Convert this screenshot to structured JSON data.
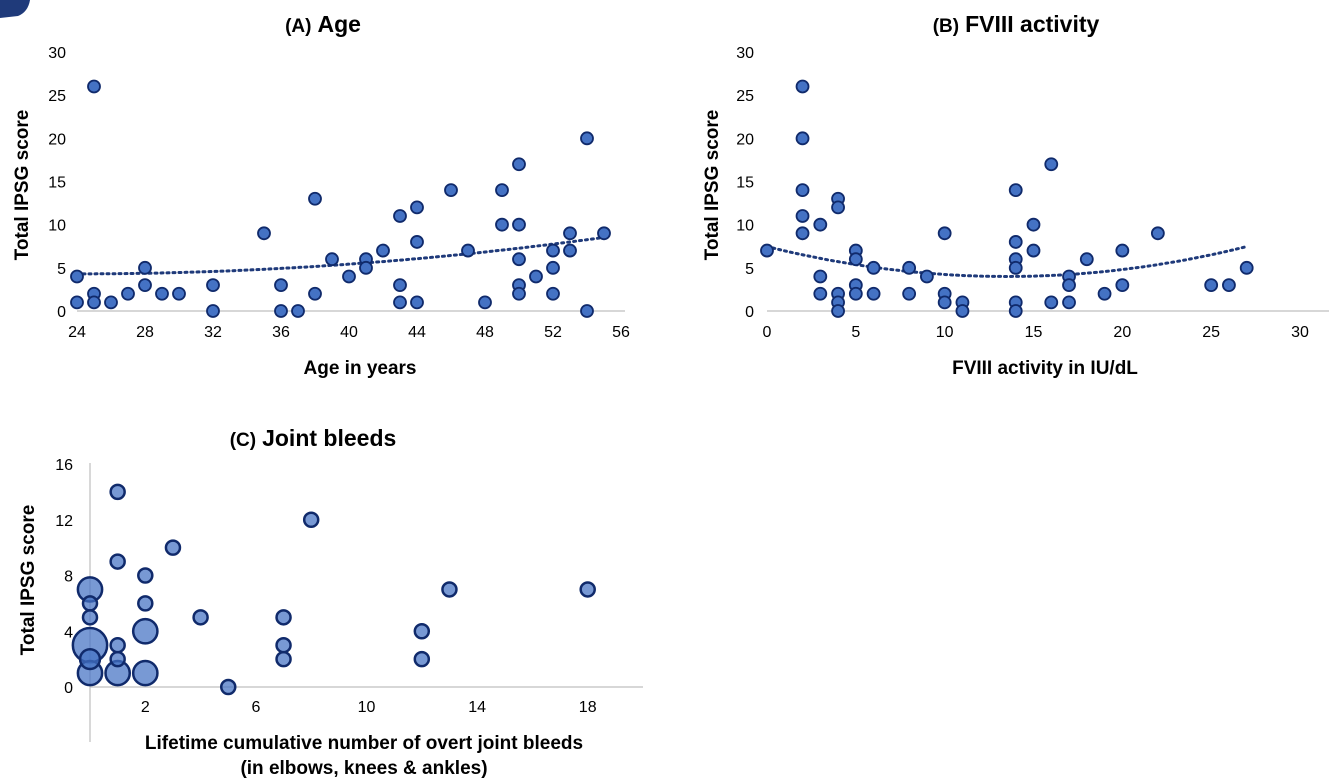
{
  "chart_data": [
    {
      "type": "scatter",
      "title_prefix": "(A)",
      "title": "Age",
      "xlabel": "Age in years",
      "ylabel": "Total IPSG score",
      "xlim": [
        24,
        56
      ],
      "ylim": [
        0,
        30
      ],
      "xticks": [
        24,
        28,
        32,
        36,
        40,
        44,
        48,
        52,
        56
      ],
      "yticks": [
        0,
        5,
        10,
        15,
        20,
        25,
        30
      ],
      "trendline": "polynomial",
      "trend_coeffs": [
        4.3,
        0,
        0.0044
      ],
      "trend_center": 24,
      "trend_range": [
        24,
        55
      ],
      "grid": false,
      "points": [
        {
          "x": 24,
          "y": 4
        },
        {
          "x": 24,
          "y": 1
        },
        {
          "x": 25,
          "y": 26
        },
        {
          "x": 25,
          "y": 2
        },
        {
          "x": 25,
          "y": 1
        },
        {
          "x": 26,
          "y": 1
        },
        {
          "x": 27,
          "y": 2
        },
        {
          "x": 28,
          "y": 5
        },
        {
          "x": 28,
          "y": 3
        },
        {
          "x": 29,
          "y": 2
        },
        {
          "x": 30,
          "y": 2
        },
        {
          "x": 32,
          "y": 3
        },
        {
          "x": 32,
          "y": 0
        },
        {
          "x": 35,
          "y": 9
        },
        {
          "x": 36,
          "y": 3
        },
        {
          "x": 36,
          "y": 0
        },
        {
          "x": 37,
          "y": 0
        },
        {
          "x": 38,
          "y": 13
        },
        {
          "x": 38,
          "y": 2
        },
        {
          "x": 39,
          "y": 6
        },
        {
          "x": 40,
          "y": 4
        },
        {
          "x": 41,
          "y": 6
        },
        {
          "x": 41,
          "y": 5
        },
        {
          "x": 42,
          "y": 7
        },
        {
          "x": 43,
          "y": 11
        },
        {
          "x": 43,
          "y": 3
        },
        {
          "x": 43,
          "y": 1
        },
        {
          "x": 44,
          "y": 12
        },
        {
          "x": 44,
          "y": 8
        },
        {
          "x": 44,
          "y": 1
        },
        {
          "x": 46,
          "y": 14
        },
        {
          "x": 47,
          "y": 7
        },
        {
          "x": 48,
          "y": 1
        },
        {
          "x": 49,
          "y": 14
        },
        {
          "x": 49,
          "y": 10
        },
        {
          "x": 50,
          "y": 17
        },
        {
          "x": 50,
          "y": 10
        },
        {
          "x": 50,
          "y": 6
        },
        {
          "x": 50,
          "y": 3
        },
        {
          "x": 50,
          "y": 2
        },
        {
          "x": 51,
          "y": 4
        },
        {
          "x": 52,
          "y": 7
        },
        {
          "x": 52,
          "y": 5
        },
        {
          "x": 52,
          "y": 2
        },
        {
          "x": 53,
          "y": 9
        },
        {
          "x": 53,
          "y": 7
        },
        {
          "x": 54,
          "y": 20
        },
        {
          "x": 54,
          "y": 0
        },
        {
          "x": 55,
          "y": 9
        }
      ]
    },
    {
      "type": "scatter",
      "title_prefix": "(B)",
      "title": "FVIII activity",
      "xlabel": "FVIII activity in IU/dL",
      "ylabel": "Total IPSG score",
      "xlim": [
        0,
        30
      ],
      "ylim": [
        0,
        30
      ],
      "xticks": [
        0,
        5,
        10,
        15,
        20,
        25,
        30
      ],
      "yticks": [
        0,
        5,
        10,
        15,
        20,
        25,
        30
      ],
      "trendline": "polynomial",
      "trend_coeffs": [
        4,
        0,
        0.019
      ],
      "trend_center": 13.5,
      "trend_range": [
        0,
        27
      ],
      "grid": false,
      "points": [
        {
          "x": 0,
          "y": 7
        },
        {
          "x": 2,
          "y": 26
        },
        {
          "x": 2,
          "y": 20
        },
        {
          "x": 2,
          "y": 14
        },
        {
          "x": 2,
          "y": 11
        },
        {
          "x": 2,
          "y": 9
        },
        {
          "x": 3,
          "y": 10
        },
        {
          "x": 3,
          "y": 4
        },
        {
          "x": 3,
          "y": 2
        },
        {
          "x": 4,
          "y": 13
        },
        {
          "x": 4,
          "y": 12
        },
        {
          "x": 4,
          "y": 2
        },
        {
          "x": 4,
          "y": 1
        },
        {
          "x": 4,
          "y": 0
        },
        {
          "x": 5,
          "y": 7
        },
        {
          "x": 5,
          "y": 6
        },
        {
          "x": 5,
          "y": 3
        },
        {
          "x": 5,
          "y": 2
        },
        {
          "x": 6,
          "y": 5
        },
        {
          "x": 6,
          "y": 2
        },
        {
          "x": 8,
          "y": 5
        },
        {
          "x": 8,
          "y": 2
        },
        {
          "x": 9,
          "y": 4
        },
        {
          "x": 10,
          "y": 9
        },
        {
          "x": 10,
          "y": 2
        },
        {
          "x": 10,
          "y": 1
        },
        {
          "x": 11,
          "y": 1
        },
        {
          "x": 11,
          "y": 0
        },
        {
          "x": 14,
          "y": 14
        },
        {
          "x": 14,
          "y": 8
        },
        {
          "x": 14,
          "y": 6
        },
        {
          "x": 14,
          "y": 5
        },
        {
          "x": 14,
          "y": 1
        },
        {
          "x": 14,
          "y": 0
        },
        {
          "x": 15,
          "y": 10
        },
        {
          "x": 15,
          "y": 7
        },
        {
          "x": 16,
          "y": 17
        },
        {
          "x": 16,
          "y": 1
        },
        {
          "x": 17,
          "y": 4
        },
        {
          "x": 17,
          "y": 3
        },
        {
          "x": 17,
          "y": 1
        },
        {
          "x": 18,
          "y": 6
        },
        {
          "x": 19,
          "y": 2
        },
        {
          "x": 20,
          "y": 7
        },
        {
          "x": 20,
          "y": 3
        },
        {
          "x": 22,
          "y": 9
        },
        {
          "x": 25,
          "y": 3
        },
        {
          "x": 26,
          "y": 3
        },
        {
          "x": 27,
          "y": 5
        }
      ]
    },
    {
      "type": "bubble",
      "title_prefix": "(C)",
      "title": "Joint bleeds",
      "xlabel_line1": "Lifetime cumulative number of overt joint bleeds",
      "xlabel_line2": "(in elbows, knees & ankles)",
      "ylabel": "Total IPSG score",
      "xlim": [
        0,
        20
      ],
      "ylim": [
        0,
        16
      ],
      "xticks": [
        2,
        6,
        10,
        14,
        18
      ],
      "yticks": [
        0,
        4,
        8,
        12,
        16
      ],
      "grid": false,
      "points": [
        {
          "x": 0,
          "y": 3,
          "size": 6
        },
        {
          "x": 0,
          "y": 7,
          "size": 3
        },
        {
          "x": 0,
          "y": 1,
          "size": 3
        },
        {
          "x": 0,
          "y": 2,
          "size": 2
        },
        {
          "x": 0,
          "y": 6,
          "size": 1
        },
        {
          "x": 0,
          "y": 5,
          "size": 1
        },
        {
          "x": 1,
          "y": 14,
          "size": 1
        },
        {
          "x": 1,
          "y": 9,
          "size": 1
        },
        {
          "x": 1,
          "y": 3,
          "size": 1
        },
        {
          "x": 1,
          "y": 2,
          "size": 1
        },
        {
          "x": 1,
          "y": 1,
          "size": 3
        },
        {
          "x": 2,
          "y": 8,
          "size": 1
        },
        {
          "x": 2,
          "y": 6,
          "size": 1
        },
        {
          "x": 2,
          "y": 4,
          "size": 3
        },
        {
          "x": 2,
          "y": 1,
          "size": 3
        },
        {
          "x": 3,
          "y": 10,
          "size": 1
        },
        {
          "x": 4,
          "y": 5,
          "size": 1
        },
        {
          "x": 5,
          "y": 0,
          "size": 1
        },
        {
          "x": 7,
          "y": 5,
          "size": 1
        },
        {
          "x": 7,
          "y": 3,
          "size": 1
        },
        {
          "x": 7,
          "y": 2,
          "size": 1
        },
        {
          "x": 8,
          "y": 12,
          "size": 1
        },
        {
          "x": 12,
          "y": 4,
          "size": 1
        },
        {
          "x": 12,
          "y": 2,
          "size": 1
        },
        {
          "x": 13,
          "y": 7,
          "size": 1
        },
        {
          "x": 18,
          "y": 7,
          "size": 1
        }
      ]
    }
  ]
}
